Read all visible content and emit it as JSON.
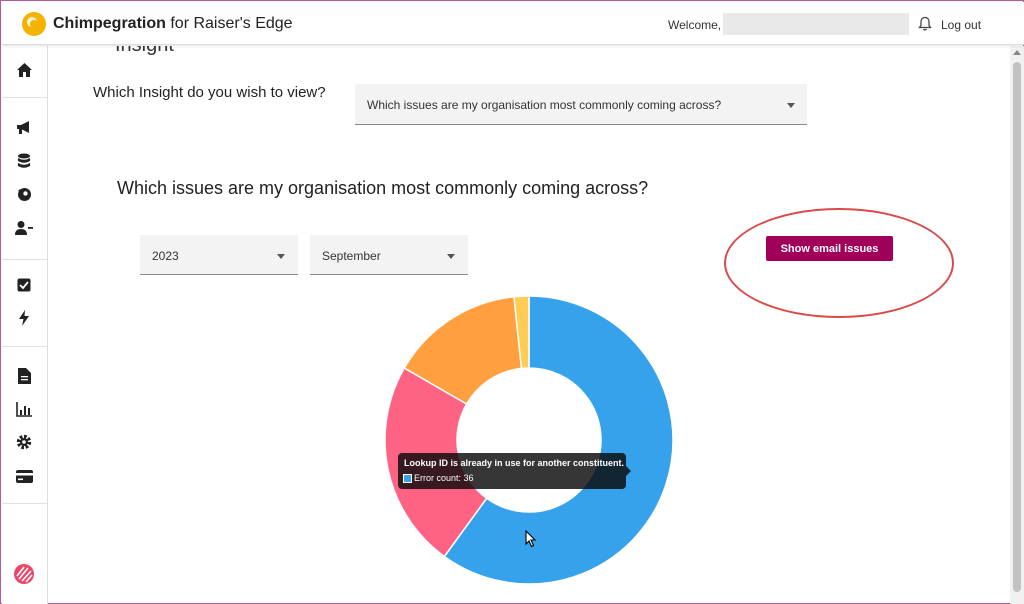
{
  "app": {
    "brand_name": "Chimpegration",
    "brand_suffix": "for Raiser's Edge",
    "welcome": "Welcome,",
    "logout": "Log out"
  },
  "sidebar": {
    "items": [
      {
        "icon": "home-icon"
      },
      {
        "icon": "megaphone-icon"
      },
      {
        "icon": "database-icon"
      },
      {
        "icon": "mailchimp-icon"
      },
      {
        "icon": "user-remove-icon"
      },
      {
        "icon": "checkbox-icon"
      },
      {
        "icon": "lightning-icon"
      },
      {
        "icon": "document-icon"
      },
      {
        "icon": "bar-chart-icon"
      },
      {
        "icon": "gear-icon"
      },
      {
        "icon": "credit-card-icon"
      },
      {
        "icon": "company-logo-icon"
      }
    ]
  },
  "page": {
    "insight_question": "Which Insight do you wish to view?",
    "insight_selected": "Which issues are my organisation most commonly coming across?",
    "section_title": "Which issues are my organisation most commonly coming across?",
    "year_selected": "2023",
    "month_selected": "September",
    "email_button": "Show email issues"
  },
  "chart_data": {
    "type": "pie",
    "style": "doughnut",
    "series": [
      {
        "value": 36,
        "color": "#36a2eb"
      },
      {
        "value": 14,
        "color": "#ff6384"
      },
      {
        "value": 9,
        "color": "#ff9f40"
      },
      {
        "value": 1,
        "color": "#ffcd56"
      }
    ]
  },
  "tooltip": {
    "title": "Lookup ID is already in use for another constituent.",
    "line": "Error count: 36",
    "color": "#36a2eb"
  },
  "colors": {
    "accent": "#a0005a",
    "highlight": "#d94a4a",
    "logo": "#f3b300"
  }
}
